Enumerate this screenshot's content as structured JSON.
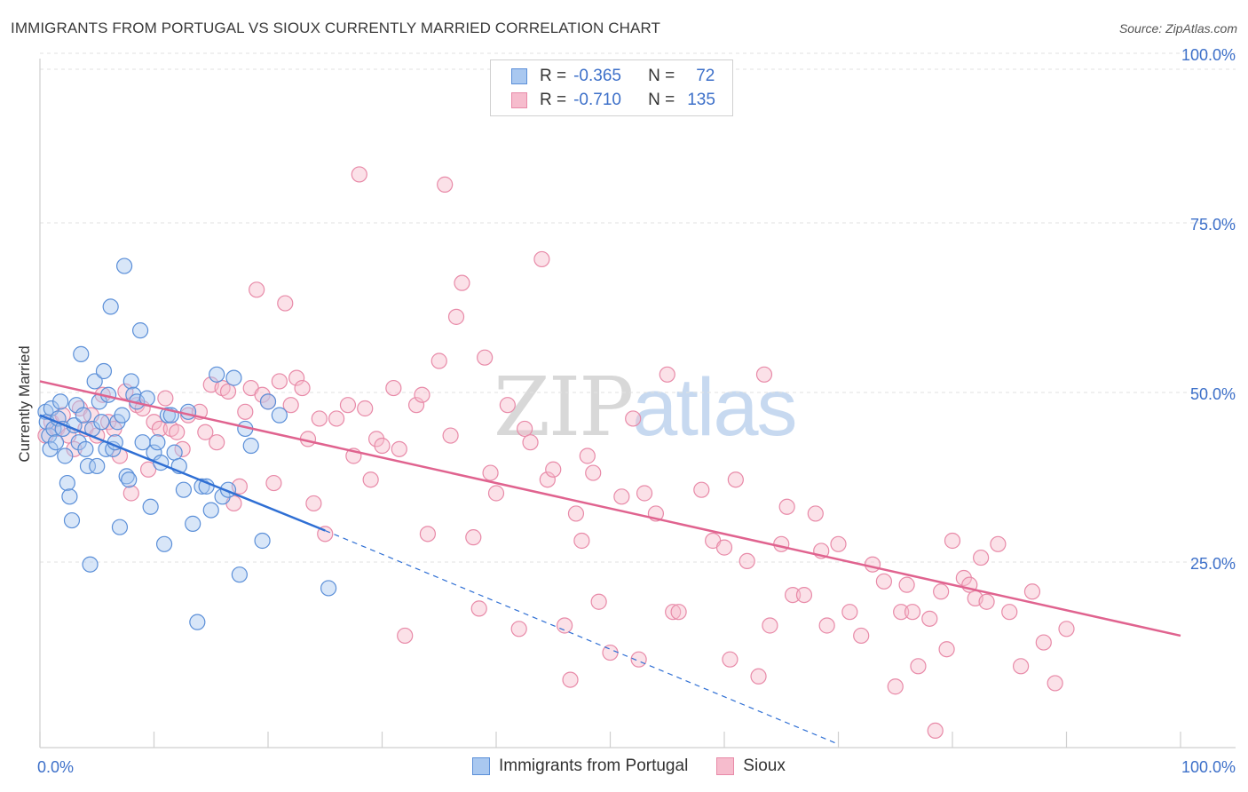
{
  "header": {
    "title": "IMMIGRANTS FROM PORTUGAL VS SIOUX CURRENTLY MARRIED CORRELATION CHART",
    "source": "Source: ZipAtlas.com"
  },
  "watermark": {
    "zip": "ZIP",
    "atlas": "atlas"
  },
  "legend_top": {
    "rows": [
      {
        "r_label": "R =",
        "r_value": "-0.365",
        "n_label": "N =",
        "n_value": "72"
      },
      {
        "r_label": "R =",
        "r_value": "-0.710",
        "n_label": "N =",
        "n_value": "135"
      }
    ]
  },
  "colors": {
    "blue_fill": "#a9c8f0",
    "blue_stroke": "#5b8fd8",
    "blue_line": "#2f6fd4",
    "pink_fill": "#f6bccd",
    "pink_stroke": "#e88aa8",
    "pink_line": "#e0638f",
    "axis_text": "#3d70c9",
    "grid": "#e2e2e2"
  },
  "chart_data": {
    "type": "scatter",
    "title": "IMMIGRANTS FROM PORTUGAL VS SIOUX CURRENTLY MARRIED CORRELATION CHART",
    "xlabel": "",
    "ylabel": "Currently Married",
    "xlim": [
      0,
      100
    ],
    "ylim": [
      0,
      100
    ],
    "x_tick_labels": [
      "0.0%",
      "100.0%"
    ],
    "y_tick_labels": [
      "25.0%",
      "50.0%",
      "75.0%",
      "100.0%"
    ],
    "y_ticks": [
      25,
      50,
      75,
      100
    ],
    "legend": [
      "Immigrants from Portugal",
      "Sioux"
    ],
    "series": [
      {
        "name": "Immigrants from Portugal",
        "r": -0.365,
        "n": 72,
        "trend": {
          "x": [
            0,
            25
          ],
          "y": [
            49.0,
            32.0
          ],
          "dashed_to": [
            70,
            0.5
          ]
        },
        "points": [
          [
            0.5,
            49.5
          ],
          [
            0.6,
            48
          ],
          [
            0.8,
            46
          ],
          [
            0.9,
            44
          ],
          [
            1.0,
            50
          ],
          [
            1.2,
            47
          ],
          [
            1.4,
            45
          ],
          [
            1.6,
            48.5
          ],
          [
            1.8,
            51
          ],
          [
            2.0,
            47
          ],
          [
            2.2,
            43
          ],
          [
            2.4,
            39
          ],
          [
            2.6,
            37
          ],
          [
            2.8,
            33.5
          ],
          [
            3.0,
            47.5
          ],
          [
            3.2,
            50.5
          ],
          [
            3.4,
            45
          ],
          [
            3.6,
            58
          ],
          [
            3.8,
            49
          ],
          [
            4.0,
            44
          ],
          [
            4.2,
            41.5
          ],
          [
            4.4,
            27
          ],
          [
            4.6,
            47
          ],
          [
            4.8,
            54
          ],
          [
            5.0,
            41.5
          ],
          [
            5.2,
            51
          ],
          [
            5.4,
            48
          ],
          [
            5.6,
            55.5
          ],
          [
            5.8,
            44
          ],
          [
            6.0,
            52
          ],
          [
            6.2,
            65
          ],
          [
            6.4,
            44
          ],
          [
            6.6,
            45
          ],
          [
            6.8,
            48
          ],
          [
            7.0,
            32.5
          ],
          [
            7.2,
            49
          ],
          [
            7.4,
            71
          ],
          [
            7.6,
            40
          ],
          [
            7.8,
            39.5
          ],
          [
            8.0,
            54
          ],
          [
            8.2,
            52
          ],
          [
            8.5,
            51
          ],
          [
            8.8,
            61.5
          ],
          [
            9.0,
            45
          ],
          [
            9.4,
            51.5
          ],
          [
            9.7,
            35.5
          ],
          [
            10.0,
            43.5
          ],
          [
            10.3,
            45
          ],
          [
            10.6,
            42
          ],
          [
            10.9,
            30
          ],
          [
            11.2,
            49
          ],
          [
            11.5,
            49
          ],
          [
            11.8,
            43.5
          ],
          [
            12.2,
            41.5
          ],
          [
            12.6,
            38
          ],
          [
            13.0,
            49.5
          ],
          [
            13.4,
            33
          ],
          [
            13.8,
            18.5
          ],
          [
            14.2,
            38.5
          ],
          [
            14.6,
            38.5
          ],
          [
            15.0,
            35
          ],
          [
            15.5,
            55
          ],
          [
            16.0,
            37
          ],
          [
            16.5,
            38
          ],
          [
            17.0,
            54.5
          ],
          [
            17.5,
            25.5
          ],
          [
            18.0,
            47
          ],
          [
            18.5,
            44.5
          ],
          [
            19.5,
            30.5
          ],
          [
            20.0,
            51
          ],
          [
            21.0,
            49
          ],
          [
            25.3,
            23.5
          ]
        ]
      },
      {
        "name": "Sioux",
        "r": -0.71,
        "n": 135,
        "trend": {
          "x": [
            0,
            100
          ],
          "y": [
            54.0,
            16.5
          ]
        },
        "points": [
          [
            0.5,
            46
          ],
          [
            1.0,
            48
          ],
          [
            1.5,
            47
          ],
          [
            2.0,
            49
          ],
          [
            2.5,
            46
          ],
          [
            3.0,
            44
          ],
          [
            3.5,
            50
          ],
          [
            4.0,
            47
          ],
          [
            4.5,
            49
          ],
          [
            5.0,
            46
          ],
          [
            5.5,
            52
          ],
          [
            6.0,
            48
          ],
          [
            6.5,
            47
          ],
          [
            7.0,
            43
          ],
          [
            7.5,
            52.5
          ],
          [
            8.0,
            37.5
          ],
          [
            8.5,
            50.5
          ],
          [
            9.0,
            50
          ],
          [
            9.5,
            41
          ],
          [
            10.0,
            48
          ],
          [
            10.5,
            47
          ],
          [
            11.0,
            51.5
          ],
          [
            11.5,
            47
          ],
          [
            12.0,
            46.5
          ],
          [
            12.5,
            44
          ],
          [
            13.0,
            49
          ],
          [
            14.0,
            49.5
          ],
          [
            14.5,
            46.5
          ],
          [
            15.0,
            53.5
          ],
          [
            15.5,
            45
          ],
          [
            16.0,
            53
          ],
          [
            16.5,
            52.5
          ],
          [
            17.0,
            36
          ],
          [
            17.5,
            38.5
          ],
          [
            18.0,
            49.5
          ],
          [
            18.5,
            53
          ],
          [
            19.0,
            67.5
          ],
          [
            19.5,
            52
          ],
          [
            20.0,
            51
          ],
          [
            20.5,
            39
          ],
          [
            21.0,
            54
          ],
          [
            21.5,
            65.5
          ],
          [
            22.0,
            50.5
          ],
          [
            22.5,
            54.5
          ],
          [
            23.0,
            53
          ],
          [
            23.5,
            45.5
          ],
          [
            24.0,
            36
          ],
          [
            24.5,
            48.5
          ],
          [
            25.0,
            31.5
          ],
          [
            26.0,
            48.5
          ],
          [
            27.0,
            50.5
          ],
          [
            27.5,
            43
          ],
          [
            28.0,
            84.5
          ],
          [
            28.5,
            50
          ],
          [
            29.0,
            39.5
          ],
          [
            29.5,
            45.5
          ],
          [
            30.0,
            44.5
          ],
          [
            31.0,
            53
          ],
          [
            31.5,
            44
          ],
          [
            32.0,
            16.5
          ],
          [
            33.0,
            50.5
          ],
          [
            33.5,
            52
          ],
          [
            34.0,
            31.5
          ],
          [
            35.0,
            57
          ],
          [
            35.5,
            83
          ],
          [
            36.0,
            46
          ],
          [
            36.5,
            63.5
          ],
          [
            37.0,
            68.5
          ],
          [
            38.0,
            31
          ],
          [
            38.5,
            20.5
          ],
          [
            39.0,
            57.5
          ],
          [
            39.5,
            40.5
          ],
          [
            40.0,
            37.5
          ],
          [
            41.0,
            50.5
          ],
          [
            42.0,
            17.5
          ],
          [
            42.5,
            47
          ],
          [
            43.0,
            45
          ],
          [
            44.0,
            72
          ],
          [
            44.5,
            39.5
          ],
          [
            45.0,
            41
          ],
          [
            46.0,
            18
          ],
          [
            46.5,
            10
          ],
          [
            47.0,
            34.5
          ],
          [
            47.5,
            30.5
          ],
          [
            48.0,
            43
          ],
          [
            48.5,
            40.5
          ],
          [
            49.0,
            21.5
          ],
          [
            50.0,
            14
          ],
          [
            51.0,
            37
          ],
          [
            52.0,
            48.5
          ],
          [
            52.5,
            13
          ],
          [
            53.0,
            37.5
          ],
          [
            54.0,
            34.5
          ],
          [
            55.0,
            55
          ],
          [
            55.5,
            20
          ],
          [
            56.0,
            20
          ],
          [
            58.0,
            38
          ],
          [
            59.0,
            30.5
          ],
          [
            60.0,
            29.5
          ],
          [
            60.5,
            13
          ],
          [
            61.0,
            39.5
          ],
          [
            62.0,
            27.5
          ],
          [
            63.0,
            10.5
          ],
          [
            63.5,
            55
          ],
          [
            64.0,
            18
          ],
          [
            65.0,
            30
          ],
          [
            65.5,
            35.5
          ],
          [
            66.0,
            22.5
          ],
          [
            67.0,
            22.5
          ],
          [
            68.0,
            34.5
          ],
          [
            68.5,
            29
          ],
          [
            69.0,
            18
          ],
          [
            70.0,
            30
          ],
          [
            71.0,
            20
          ],
          [
            72.0,
            16.5
          ],
          [
            73.0,
            27
          ],
          [
            74.0,
            24.5
          ],
          [
            75.0,
            9
          ],
          [
            75.5,
            20
          ],
          [
            76.0,
            24
          ],
          [
            76.5,
            20
          ],
          [
            77.0,
            12
          ],
          [
            78.0,
            19
          ],
          [
            79.0,
            23
          ],
          [
            79.5,
            14.5
          ],
          [
            80.0,
            30.5
          ],
          [
            81.0,
            25
          ],
          [
            81.5,
            24
          ],
          [
            82.0,
            22
          ],
          [
            82.5,
            28
          ],
          [
            83.0,
            21.5
          ],
          [
            84.0,
            30
          ],
          [
            85.0,
            20
          ],
          [
            86.0,
            12
          ],
          [
            87.0,
            23
          ],
          [
            88.0,
            15.5
          ],
          [
            89.0,
            9.5
          ],
          [
            90.0,
            17.5
          ],
          [
            78.5,
            2.5
          ]
        ]
      }
    ]
  }
}
